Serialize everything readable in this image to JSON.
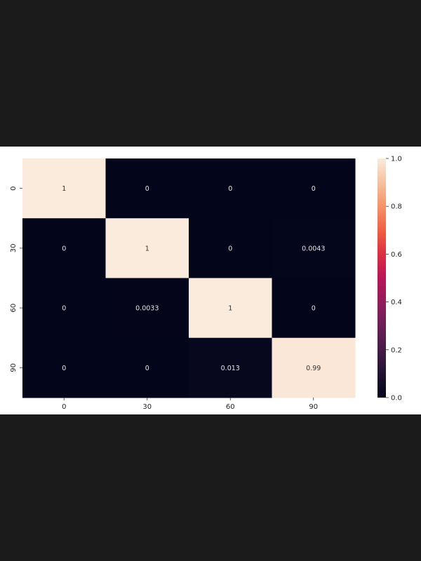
{
  "chart_data": {
    "type": "heatmap",
    "title": "",
    "xlabel": "",
    "ylabel": "",
    "x_categories": [
      "0",
      "30",
      "60",
      "90"
    ],
    "y_categories": [
      "0",
      "30",
      "60",
      "90"
    ],
    "values": [
      [
        1,
        0,
        0,
        0
      ],
      [
        0,
        1,
        0,
        0.0043
      ],
      [
        0,
        0.0033,
        1,
        0
      ],
      [
        0,
        0,
        0.013,
        0.99
      ]
    ],
    "annotations": [
      [
        "1",
        "0",
        "0",
        "0"
      ],
      [
        "0",
        "1",
        "0",
        "0.0043"
      ],
      [
        "0",
        "0.0033",
        "1",
        "0"
      ],
      [
        "0",
        "0",
        "0.013",
        "0.99"
      ]
    ],
    "colorbar": {
      "range": [
        0.0,
        1.0
      ],
      "ticks": [
        "0.0",
        "0.2",
        "0.4",
        "0.6",
        "0.8",
        "1.0"
      ],
      "colormap": "rocket"
    },
    "grid": false,
    "colors": {
      "low": "#03051a",
      "high": "#faebdd",
      "page_background": "#1b1b1b",
      "figure_background": "#ffffff"
    }
  }
}
